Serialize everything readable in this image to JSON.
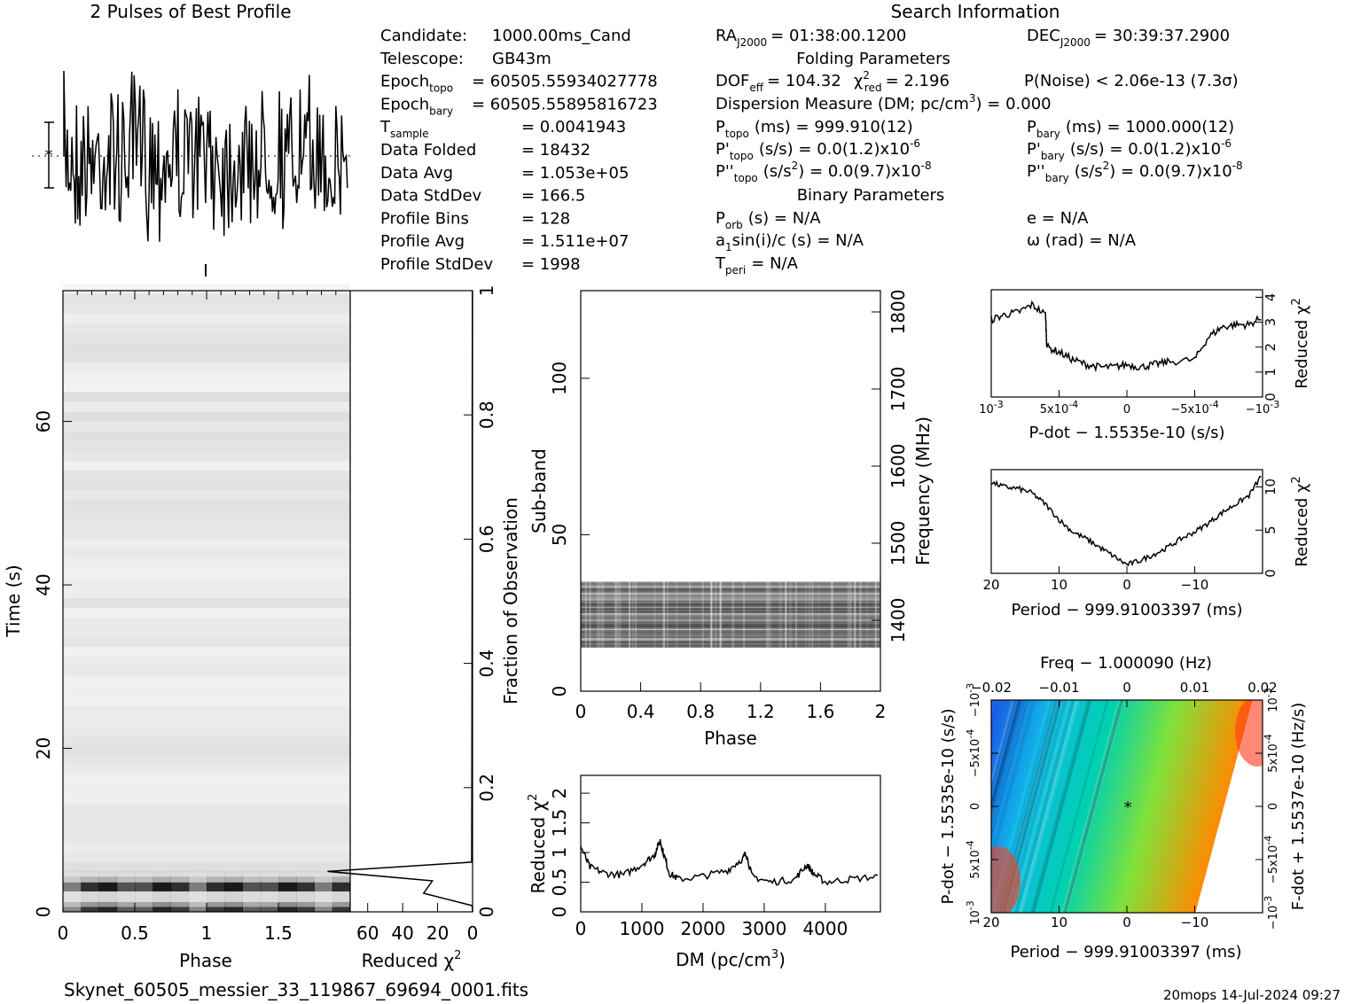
{
  "header": {
    "profile_title": "2 Pulses of Best Profile",
    "search_title": "Search Information"
  },
  "info_left": [
    {
      "label": "Candidate:",
      "value": "1000.00ms_Cand"
    },
    {
      "label": "Telescope:",
      "value": "GB43m"
    },
    {
      "label": "Epoch",
      "sub": "topo",
      "value": "= 60505.55934027778"
    },
    {
      "label": "Epoch",
      "sub": "bary",
      "value": "= 60505.55895816723"
    },
    {
      "label": "T",
      "sub": "sample",
      "value": "=   0.0041943"
    },
    {
      "label": "Data Folded",
      "value": "=   18432"
    },
    {
      "label": "Data Avg",
      "value": "=   1.053e+05"
    },
    {
      "label": "Data StdDev",
      "value": "=   166.5"
    },
    {
      "label": "Profile Bins",
      "value": "=   128"
    },
    {
      "label": "Profile Avg",
      "value": "=   1.511e+07"
    },
    {
      "label": "Profile StdDev",
      "value": "=   1998"
    }
  ],
  "search": {
    "ra_label": "RA",
    "ra_sub": "J2000",
    "ra_value": "= 01:38:00.1200",
    "dec_label": "DEC",
    "dec_sub": "J2000",
    "dec_value": "= 30:39:37.2900",
    "folding_title": "Folding Parameters",
    "dof": "DOF",
    "dof_sub": "eff",
    "dof_value": "= 104.32",
    "chi_label": "χ",
    "chi_sup": "2",
    "chi_sub": "red",
    "chi_value": "= 2.196",
    "pnoise": "P(Noise) < 2.06e-13   (7.3σ)",
    "dm_line": "Dispersion Measure (DM; pc/cm",
    "dm_sup": "3",
    "dm_value": ") = 0.000",
    "ptopo": "P",
    "ptopo_sub": "topo",
    "ptopo_value": "(ms) =  999.910(12)",
    "pbary": "P",
    "pbary_sub": "bary",
    "pbary_value": "(ms) =  1000.000(12)",
    "pdtopo": "P'",
    "pdtopo_sub": "topo",
    "pdtopo_value": "(s/s) = 0.0(1.2)x10",
    "pdtopo_exp": "-6",
    "pdbary": "P'",
    "pdbary_sub": "bary",
    "pdbary_value": "(s/s) = 0.0(1.2)x10",
    "pdbary_exp": "-6",
    "pddtopo": "P''",
    "pddtopo_sub": "topo",
    "pddtopo_value": "(s/s",
    "pddtopo_value2": ") = 0.0(9.7)x10",
    "pddtopo_exp": "-8",
    "pddbary": "P''",
    "pddbary_sub": "bary",
    "pddbary_value": "(s/s",
    "pddbary_value2": ") = 0.0(9.7)x10",
    "pddbary_exp": "-8",
    "sq": "2",
    "binary_title": "Binary Parameters",
    "porb": "P",
    "porb_sub": "orb",
    "porb_value": "(s) = N/A",
    "e_value": "e = N/A",
    "a1_pre": "a",
    "a1_sub": "1",
    "a1_value": "sin(i)/c (s) = N/A",
    "omega_value": "ω (rad) = N/A",
    "tperi": "T",
    "tperi_sub": "peri",
    "tperi_value": "= N/A"
  },
  "footer": {
    "filename": "Skynet_60505_messier_33_119867_69694_0001.fits",
    "stamp": "20mops 14-Jul-2024 09:27"
  },
  "chart_data": [
    {
      "id": "time_phase",
      "type": "heatmap",
      "xlabel": "Phase",
      "ylabel": "Time (s)",
      "xticks": [
        "0",
        "0.5",
        "1",
        "1.5"
      ],
      "yticks": [
        "0",
        "20",
        "40",
        "60"
      ],
      "xlim": [
        0,
        2
      ],
      "ylim": [
        0,
        76
      ],
      "colormap": "gray_r"
    },
    {
      "id": "time_chi2",
      "type": "line",
      "xlabel": "Reduced χ",
      "xlabel_sup": "2",
      "ylabel_right": "Fraction of Observation",
      "xticks": [
        "60",
        "40",
        "20",
        "0"
      ],
      "yticks_right": [
        "0",
        "0.2",
        "0.4",
        "0.6",
        "0.8",
        "1"
      ],
      "xlim": [
        70,
        0
      ],
      "ylim": [
        0,
        1
      ],
      "x": [
        0,
        0.2,
        28,
        23,
        83,
        0.5,
        0.4,
        0.3,
        0.2,
        0.2,
        0.1,
        0.1
      ],
      "y": [
        0,
        0.01,
        0.03,
        0.05,
        0.065,
        0.08,
        0.2,
        0.4,
        0.6,
        0.8,
        0.95,
        1.0
      ]
    },
    {
      "id": "subband_phase",
      "type": "heatmap",
      "xlabel": "Phase",
      "ylabel": "Sub-band",
      "ylabel_right": "Frequency (MHz)",
      "xticks": [
        "0",
        "0.4",
        "0.8",
        "1.2",
        "1.6",
        "2"
      ],
      "yticks": [
        "0",
        "50",
        "100"
      ],
      "yticks_right": [
        "1400",
        "1500",
        "1600",
        "1700",
        "1800"
      ],
      "xlim": [
        0,
        2
      ],
      "ylim": [
        0,
        128
      ],
      "active_subbands": [
        14,
        35
      ],
      "colormap": "gray_r"
    },
    {
      "id": "dm_chi2",
      "type": "line",
      "xlabel": "DM (pc/cm",
      "xlabel_sup": "3",
      "xlabel_end": ")",
      "ylabel": "Reduced χ",
      "ylabel_sup": "2",
      "xticks": [
        "0",
        "1000",
        "2000",
        "3000",
        "4000"
      ],
      "yticks": [
        "0",
        "0.5",
        "1",
        "1.5",
        "2"
      ],
      "xlim": [
        0,
        4900
      ],
      "ylim": [
        0,
        2.3
      ],
      "x": [
        0,
        150,
        400,
        700,
        1000,
        1200,
        1300,
        1350,
        1450,
        1600,
        2000,
        2400,
        2650,
        2700,
        2800,
        3100,
        3500,
        3700,
        3800,
        4000,
        4400,
        4900
      ],
      "y": [
        1.1,
        0.75,
        0.65,
        0.62,
        0.8,
        0.95,
        1.2,
        1.0,
        0.65,
        0.55,
        0.6,
        0.7,
        0.9,
        1.0,
        0.6,
        0.5,
        0.55,
        0.8,
        0.65,
        0.5,
        0.55,
        0.6
      ]
    },
    {
      "id": "pdot_chi2",
      "type": "line",
      "xlabel": "P-dot − 1.5535e-10 (s/s)",
      "ylabel_right": "Reduced χ",
      "ylabel_right_sup": "2",
      "xticks": [
        "10",
        "5x10",
        "0",
        "−5x10",
        "−10"
      ],
      "xtick_exps": [
        "-3",
        "-4",
        "",
        "-4",
        "-3"
      ],
      "yticks": [
        "0",
        "1",
        "2",
        "3",
        "4"
      ],
      "xlim": [
        0.001,
        -0.001
      ],
      "ylim": [
        0,
        4.3
      ],
      "x": [
        0.001,
        0.0009,
        0.0008,
        0.0007,
        0.0006,
        0.00059,
        0.0005,
        0.0004,
        0.0003,
        0.0002,
        0.0001,
        0,
        -0.0001,
        -0.0002,
        -0.0003,
        -0.0005,
        -0.0006,
        -0.0007,
        -0.0008,
        -0.0009,
        -0.001
      ],
      "y": [
        3.1,
        3.3,
        3.4,
        3.7,
        3.3,
        2.0,
        1.8,
        1.5,
        1.3,
        1.2,
        1.2,
        1.3,
        1.2,
        1.3,
        1.4,
        1.5,
        2.4,
        2.8,
        2.9,
        2.9,
        3.2
      ]
    },
    {
      "id": "period_chi2",
      "type": "line",
      "xlabel": "Period − 999.91003397 (ms)",
      "ylabel_right": "Reduced χ",
      "ylabel_right_sup": "2",
      "xticks": [
        "20",
        "10",
        "0",
        "−10"
      ],
      "yticks": [
        "0",
        "5",
        "10"
      ],
      "xlim": [
        20,
        -20
      ],
      "ylim": [
        0,
        12
      ],
      "x": [
        20,
        18,
        16,
        14,
        12,
        10,
        8,
        6,
        4,
        2,
        0,
        -2,
        -4,
        -6,
        -8,
        -10,
        -12,
        -14,
        -16,
        -18,
        -20
      ],
      "y": [
        10.5,
        10.0,
        9.8,
        9.3,
        8.0,
        6.2,
        4.8,
        4.0,
        3.0,
        2.0,
        1.0,
        1.5,
        2.2,
        3.0,
        4.0,
        4.8,
        5.8,
        7.0,
        8.0,
        9.0,
        11.5
      ]
    },
    {
      "id": "p_pdot_plane",
      "type": "heatmap",
      "title": "Freq − 1.000090 (Hz)",
      "xlabel": "Period − 999.91003397 (ms)",
      "ylabel": "P-dot − 1.5535e-10 (s/s)",
      "ylabel_right": "F-dot + 1.5537e-10 (Hz/s)",
      "xticks_bottom": [
        "20",
        "10",
        "0",
        "−10"
      ],
      "xticks_top": [
        "−0.02",
        "−0.01",
        "0",
        "0.01",
        "0.02"
      ],
      "yticks_left": [
        "10",
        "5x10",
        "0",
        "−5x10",
        "−10"
      ],
      "yticks_left_exps": [
        "-3",
        "-4",
        "",
        "-4",
        "-3"
      ],
      "yticks_right": [
        "−10",
        "−5x10",
        "0",
        "5x10",
        "10"
      ],
      "yticks_right_exps": [
        "-3",
        "-4",
        "",
        "-4",
        "-3"
      ],
      "xlim": [
        20,
        -20
      ],
      "ylim": [
        0.001,
        -0.001
      ],
      "colormap": "rainbow",
      "marker": "*"
    }
  ]
}
